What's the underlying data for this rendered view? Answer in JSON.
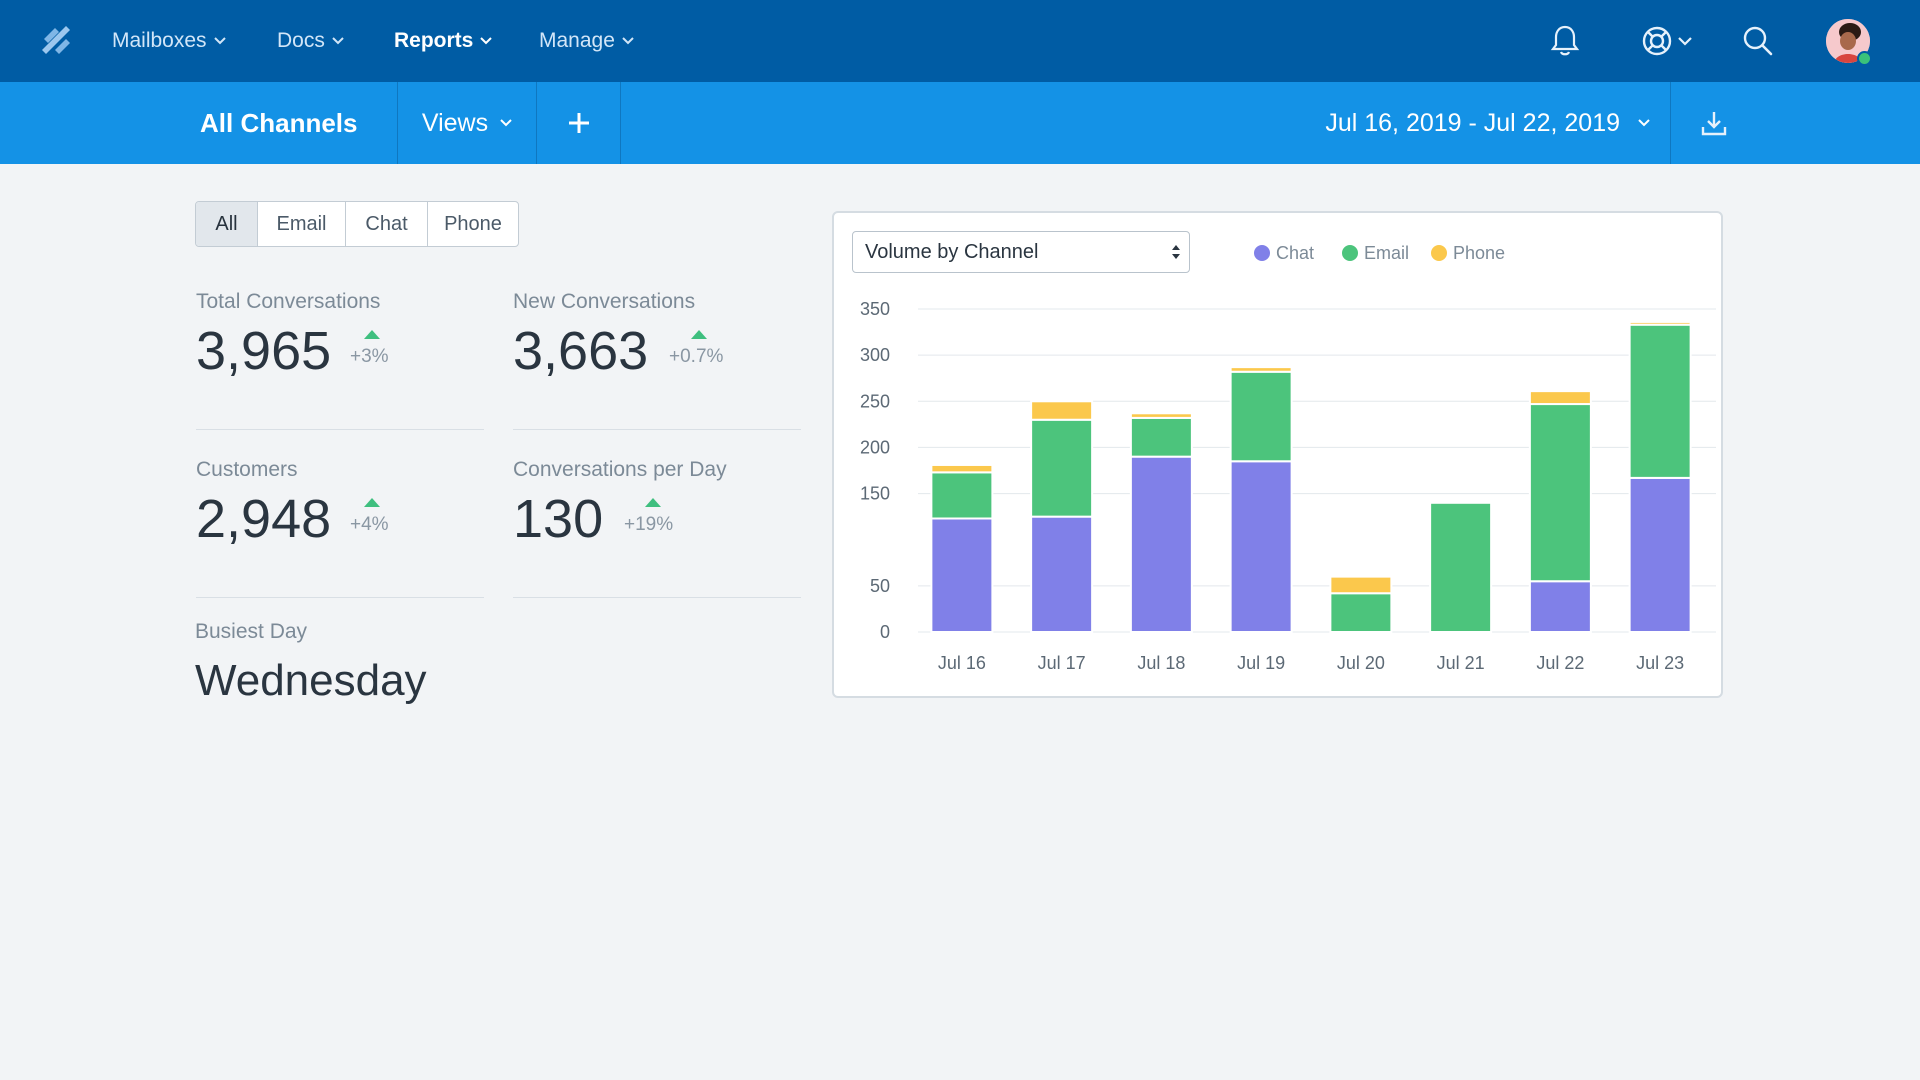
{
  "topnav": {
    "logo_icon": "helpscout-logo-icon",
    "items": [
      {
        "label": "Mailboxes",
        "active": false
      },
      {
        "label": "Docs",
        "active": false
      },
      {
        "label": "Reports",
        "active": true
      },
      {
        "label": "Manage",
        "active": false
      }
    ],
    "icons": [
      "bell-icon",
      "help-lifebuoy-icon",
      "search-icon"
    ]
  },
  "subnav": {
    "title": "All Channels",
    "views_label": "Views",
    "date_range": "Jul 16, 2019 - Jul 22, 2019"
  },
  "filters": {
    "items": [
      "All",
      "Email",
      "Chat",
      "Phone"
    ],
    "active": "All"
  },
  "stats": {
    "total_conversations": {
      "label": "Total Conversations",
      "value": "3,965",
      "change": "+3%"
    },
    "new_conversations": {
      "label": "New Conversations",
      "value": "3,663",
      "change": "+0.7%"
    },
    "customers": {
      "label": "Customers",
      "value": "2,948",
      "change": "+4%"
    },
    "conversations_per_day": {
      "label": "Conversations per Day",
      "value": "130",
      "change": "+19%"
    },
    "busiest_day": {
      "label": "Busiest Day",
      "value": "Wednesday"
    }
  },
  "chart_card": {
    "select_label": "Volume by Channel"
  },
  "colors": {
    "chat": "#8080e8",
    "email": "#4cc47c",
    "phone": "#fbc84c"
  },
  "chart_data": {
    "type": "bar",
    "stacked": true,
    "categories": [
      "Jul 16",
      "Jul 17",
      "Jul 18",
      "Jul 19",
      "Jul 20",
      "Jul 21",
      "Jul 22",
      "Jul 23"
    ],
    "series": [
      {
        "name": "Chat",
        "values": [
          123,
          125,
          190,
          185,
          0,
          0,
          55,
          167
        ]
      },
      {
        "name": "Email",
        "values": [
          50,
          105,
          42,
          97,
          42,
          140,
          192,
          166
        ]
      },
      {
        "name": "Phone",
        "values": [
          8,
          20,
          5,
          5,
          18,
          0,
          14,
          3
        ]
      }
    ],
    "y_ticks": [
      0,
      50,
      150,
      200,
      250,
      300,
      350
    ],
    "ylim": [
      0,
      350
    ],
    "grid": true,
    "legend": "top"
  }
}
